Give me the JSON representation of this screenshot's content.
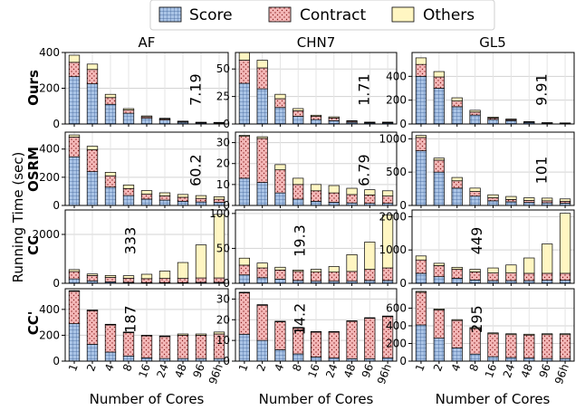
{
  "figure": {
    "ylabel": "Running Time (sec)",
    "xlabel": "Number of Cores",
    "columns": [
      "AF",
      "CHN7",
      "GL5"
    ],
    "rows": [
      "Ours",
      "OSRM",
      "CC",
      "CC'"
    ],
    "legend": [
      {
        "name": "Score",
        "color": "#aac4e6",
        "pattern": "grid"
      },
      {
        "name": "Contract",
        "color": "#f4b8b8",
        "pattern": "dots"
      },
      {
        "name": "Others",
        "color": "#fff6c2",
        "pattern": "none"
      }
    ],
    "categories": [
      "1",
      "2",
      "4",
      "8",
      "16",
      "24",
      "48",
      "96",
      "96h"
    ]
  },
  "chart_data": [
    {
      "type": "bar",
      "stacked": true,
      "row": "Ours",
      "column": "AF",
      "categories": [
        "1",
        "2",
        "4",
        "8",
        "16",
        "24",
        "48",
        "96",
        "96h"
      ],
      "ylim": [
        0,
        400
      ],
      "yticks": [
        0,
        200,
        400
      ],
      "grid": true,
      "annotation": "7.19",
      "series": [
        {
          "name": "Score",
          "values": [
            265,
            225,
            110,
            60,
            32,
            22,
            10,
            6,
            5
          ]
        },
        {
          "name": "Contract",
          "values": [
            80,
            80,
            38,
            18,
            8,
            6,
            4,
            2,
            2
          ]
        },
        {
          "name": "Others",
          "values": [
            40,
            30,
            18,
            8,
            5,
            4,
            2,
            2,
            2
          ]
        }
      ]
    },
    {
      "type": "bar",
      "stacked": true,
      "row": "Ours",
      "column": "CHN7",
      "categories": [
        "1",
        "2",
        "4",
        "8",
        "16",
        "24",
        "48",
        "96",
        "96h"
      ],
      "ylim": [
        0,
        65
      ],
      "yticks": [
        0,
        25,
        50
      ],
      "grid": true,
      "annotation": "1.71",
      "series": [
        {
          "name": "Score",
          "values": [
            37,
            32,
            15,
            7,
            4,
            3,
            1.5,
            1,
            1
          ]
        },
        {
          "name": "Contract",
          "values": [
            21,
            19,
            8,
            5,
            3,
            2.5,
            1,
            0.5,
            0.5
          ]
        },
        {
          "name": "Others",
          "values": [
            7,
            7,
            4,
            2,
            1,
            1,
            0.5,
            0.2,
            0.2
          ]
        }
      ]
    },
    {
      "type": "bar",
      "stacked": true,
      "row": "Ours",
      "column": "GL5",
      "categories": [
        "1",
        "2",
        "4",
        "8",
        "16",
        "24",
        "48",
        "96",
        "96h"
      ],
      "ylim": [
        0,
        600
      ],
      "yticks": [
        0,
        200,
        400
      ],
      "grid": true,
      "annotation": "9.91",
      "series": [
        {
          "name": "Score",
          "values": [
            400,
            300,
            145,
            75,
            38,
            28,
            13,
            8,
            6
          ]
        },
        {
          "name": "Contract",
          "values": [
            100,
            95,
            48,
            25,
            12,
            8,
            4,
            2,
            2
          ]
        },
        {
          "name": "Others",
          "values": [
            55,
            45,
            27,
            15,
            8,
            6,
            3,
            1,
            1
          ]
        }
      ]
    },
    {
      "type": "bar",
      "stacked": true,
      "row": "OSRM",
      "column": "AF",
      "categories": [
        "1",
        "2",
        "4",
        "8",
        "16",
        "24",
        "48",
        "96",
        "96h"
      ],
      "ylim": [
        0,
        520
      ],
      "yticks": [
        0,
        200,
        400
      ],
      "grid": true,
      "annotation": "60.2",
      "series": [
        {
          "name": "Score",
          "values": [
            345,
            240,
            130,
            70,
            45,
            38,
            30,
            25,
            22
          ]
        },
        {
          "name": "Contract",
          "values": [
            140,
            155,
            80,
            50,
            35,
            30,
            28,
            25,
            22
          ]
        },
        {
          "name": "Others",
          "values": [
            15,
            25,
            25,
            25,
            25,
            22,
            20,
            20,
            18
          ]
        }
      ]
    },
    {
      "type": "bar",
      "stacked": true,
      "row": "OSRM",
      "column": "CHN7",
      "categories": [
        "1",
        "2",
        "4",
        "8",
        "16",
        "24",
        "48",
        "96",
        "96h"
      ],
      "ylim": [
        0,
        35
      ],
      "yticks": [
        0,
        10,
        20,
        30
      ],
      "grid": true,
      "annotation": "6.79",
      "series": [
        {
          "name": "Score",
          "values": [
            13,
            11,
            6,
            3,
            2,
            1.5,
            1.2,
            1,
            1
          ]
        },
        {
          "name": "Contract",
          "values": [
            20,
            21,
            11,
            7,
            5,
            4.5,
            4,
            4,
            3.5
          ]
        },
        {
          "name": "Others",
          "values": [
            0.5,
            0.8,
            2.5,
            3,
            3,
            3.5,
            3,
            2.5,
            2.5
          ]
        }
      ]
    },
    {
      "type": "bar",
      "stacked": true,
      "row": "OSRM",
      "column": "GL5",
      "categories": [
        "1",
        "2",
        "4",
        "8",
        "16",
        "24",
        "48",
        "96",
        "96h"
      ],
      "ylim": [
        0,
        1100
      ],
      "yticks": [
        0,
        500,
        1000
      ],
      "grid": true,
      "annotation": "101",
      "series": [
        {
          "name": "Score",
          "values": [
            820,
            500,
            260,
            140,
            70,
            55,
            45,
            40,
            35
          ]
        },
        {
          "name": "Contract",
          "values": [
            200,
            180,
            110,
            70,
            45,
            35,
            30,
            30,
            28
          ]
        },
        {
          "name": "Others",
          "values": [
            30,
            30,
            50,
            50,
            45,
            45,
            40,
            40,
            35
          ]
        }
      ]
    },
    {
      "type": "bar",
      "stacked": true,
      "row": "CC",
      "column": "AF",
      "categories": [
        "1",
        "2",
        "4",
        "8",
        "16",
        "24",
        "48",
        "96",
        "96h"
      ],
      "ylim": [
        0,
        3000
      ],
      "yticks": [
        0,
        2000
      ],
      "grid": true,
      "annotation": "333",
      "series": [
        {
          "name": "Score",
          "values": [
            180,
            100,
            60,
            40,
            30,
            30,
            30,
            40,
            40
          ]
        },
        {
          "name": "Contract",
          "values": [
            300,
            220,
            180,
            170,
            160,
            170,
            170,
            180,
            180
          ]
        },
        {
          "name": "Others",
          "values": [
            80,
            60,
            80,
            100,
            180,
            300,
            650,
            1350,
            2600
          ]
        }
      ]
    },
    {
      "type": "bar",
      "stacked": true,
      "row": "CC",
      "column": "CHN7",
      "categories": [
        "1",
        "2",
        "4",
        "8",
        "16",
        "24",
        "48",
        "96",
        "96h"
      ],
      "ylim": [
        0,
        105
      ],
      "yticks": [
        0,
        50,
        100
      ],
      "grid": true,
      "annotation": "19.3",
      "series": [
        {
          "name": "Score",
          "values": [
            12,
            8,
            6,
            4,
            3,
            3,
            3,
            4,
            4
          ]
        },
        {
          "name": "Contract",
          "values": [
            14,
            14,
            13,
            13,
            13,
            13,
            14,
            16,
            18
          ]
        },
        {
          "name": "Others",
          "values": [
            10,
            7,
            4,
            2,
            4,
            8,
            24,
            39,
            76
          ]
        }
      ]
    },
    {
      "type": "bar",
      "stacked": true,
      "row": "CC",
      "column": "GL5",
      "categories": [
        "1",
        "2",
        "4",
        "8",
        "16",
        "24",
        "48",
        "96",
        "96h"
      ],
      "ylim": [
        0,
        2200
      ],
      "yticks": [
        0,
        1000,
        2000
      ],
      "grid": true,
      "annotation": "449",
      "series": [
        {
          "name": "Score",
          "values": [
            300,
            200,
            150,
            100,
            80,
            80,
            80,
            90,
            90
          ]
        },
        {
          "name": "Contract",
          "values": [
            400,
            330,
            270,
            240,
            230,
            230,
            220,
            210,
            210
          ]
        },
        {
          "name": "Others",
          "values": [
            120,
            70,
            60,
            80,
            150,
            240,
            460,
            880,
            1800
          ]
        }
      ]
    },
    {
      "type": "bar",
      "stacked": true,
      "row": "CC'",
      "column": "AF",
      "categories": [
        "1",
        "2",
        "4",
        "8",
        "16",
        "24",
        "48",
        "96",
        "96h"
      ],
      "ylim": [
        0,
        560
      ],
      "yticks": [
        0,
        200,
        400
      ],
      "grid": true,
      "annotation": "187",
      "series": [
        {
          "name": "Score",
          "values": [
            290,
            130,
            70,
            40,
            25,
            20,
            20,
            20,
            20
          ]
        },
        {
          "name": "Contract",
          "values": [
            250,
            260,
            210,
            180,
            170,
            170,
            180,
            180,
            190
          ]
        },
        {
          "name": "Others",
          "values": [
            5,
            5,
            5,
            5,
            5,
            5,
            10,
            10,
            15
          ]
        }
      ]
    },
    {
      "type": "bar",
      "stacked": true,
      "row": "CC'",
      "column": "CHN7",
      "categories": [
        "1",
        "2",
        "4",
        "8",
        "16",
        "24",
        "48",
        "96",
        "96h"
      ],
      "ylim": [
        0,
        35
      ],
      "yticks": [
        0,
        10,
        20,
        30
      ],
      "grid": true,
      "annotation": "14.2",
      "series": [
        {
          "name": "Score",
          "values": [
            13,
            10,
            5.5,
            3.5,
            2,
            1.5,
            1.2,
            1.2,
            1.5
          ]
        },
        {
          "name": "Contract",
          "values": [
            20,
            17,
            13.5,
            12.5,
            12,
            12.5,
            18,
            19.5,
            20
          ]
        },
        {
          "name": "Others",
          "values": [
            0.3,
            0.3,
            0.3,
            0.3,
            0.3,
            0.3,
            0.3,
            0.3,
            0.3
          ]
        }
      ]
    },
    {
      "type": "bar",
      "stacked": true,
      "row": "CC'",
      "column": "GL5",
      "categories": [
        "1",
        "2",
        "4",
        "8",
        "16",
        "24",
        "48",
        "96",
        "96h"
      ],
      "ylim": [
        0,
        820
      ],
      "yticks": [
        0,
        200,
        400,
        600
      ],
      "grid": true,
      "annotation": "295",
      "series": [
        {
          "name": "Score",
          "values": [
            410,
            260,
            150,
            80,
            50,
            40,
            35,
            30,
            30
          ]
        },
        {
          "name": "Contract",
          "values": [
            370,
            320,
            310,
            290,
            260,
            260,
            260,
            270,
            270
          ]
        },
        {
          "name": "Others",
          "values": [
            10,
            10,
            10,
            10,
            10,
            10,
            10,
            10,
            10
          ]
        }
      ]
    }
  ]
}
